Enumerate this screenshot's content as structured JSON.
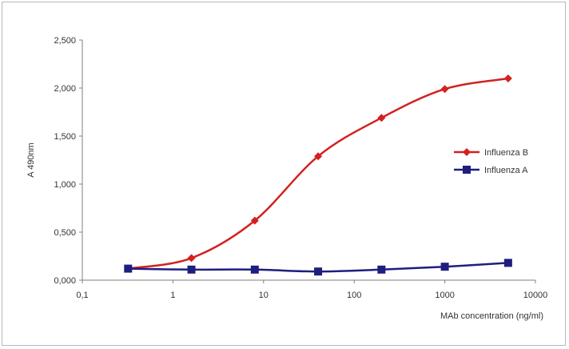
{
  "chart_data": {
    "type": "line",
    "x_scale": "log",
    "xlim": [
      0.1,
      10000
    ],
    "ylim": [
      0,
      2.5
    ],
    "x_ticks": [
      0.1,
      1,
      10,
      100,
      1000,
      10000
    ],
    "x_tick_labels": [
      "0,1",
      "1",
      "10",
      "100",
      "1000",
      "10000"
    ],
    "y_ticks": [
      0,
      0.5,
      1.0,
      1.5,
      2.0,
      2.5
    ],
    "y_tick_labels": [
      "0,000",
      "0,500",
      "1,000",
      "1,500",
      "2,000",
      "2,500"
    ],
    "xlabel": "MAb concentration (ng/ml)",
    "ylabel": "A 490nm",
    "grid": false,
    "legend_position": "right",
    "x": [
      0.32,
      1.6,
      8,
      40,
      200,
      1000,
      5000
    ],
    "series": [
      {
        "name": "Influenza B",
        "marker": "diamond",
        "color": "#d42020",
        "values": [
          0.12,
          0.23,
          0.62,
          1.29,
          1.69,
          1.99,
          2.1
        ]
      },
      {
        "name": "Influenza A",
        "marker": "square",
        "color": "#1e1e80",
        "values": [
          0.12,
          0.11,
          0.11,
          0.09,
          0.11,
          0.14,
          0.18
        ]
      }
    ]
  }
}
